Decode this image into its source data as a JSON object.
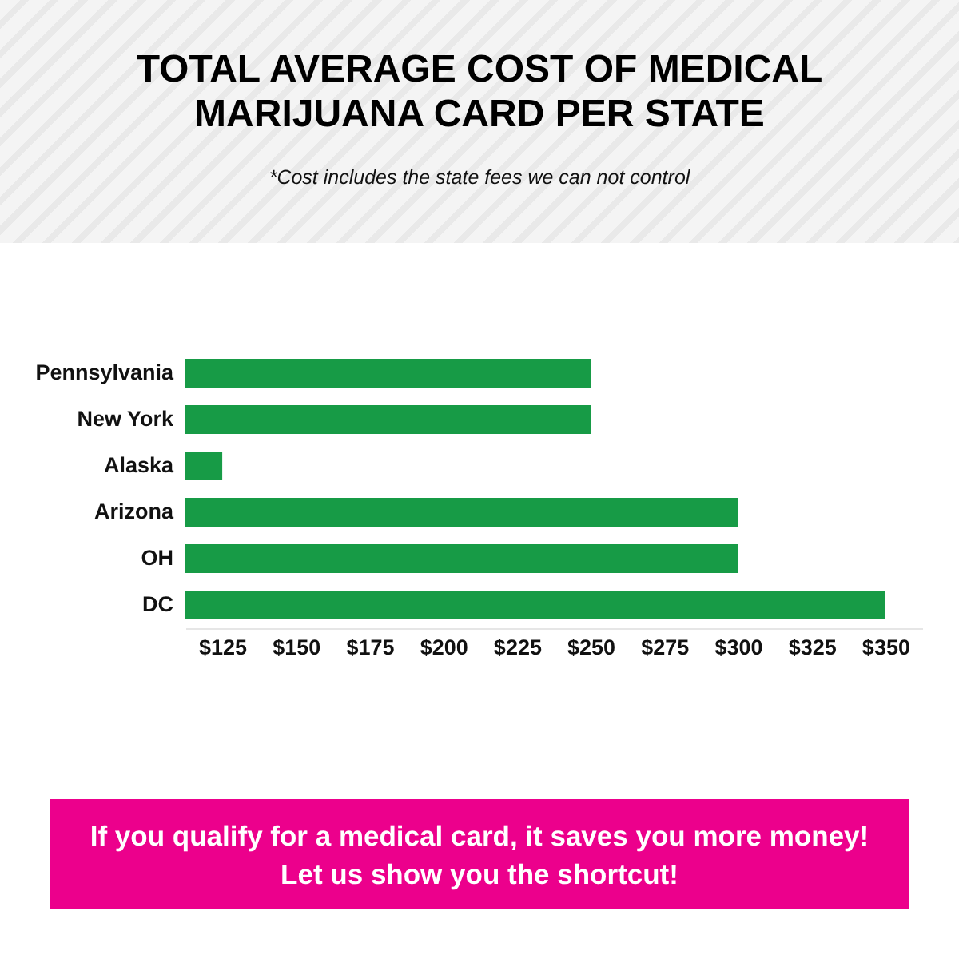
{
  "chart_data": {
    "type": "bar",
    "orientation": "horizontal",
    "title": "TOTAL AVERAGE COST OF MEDICAL MARIJUANA CARD PER STATE",
    "subtitle": "*Cost includes the state fees we can not control",
    "categories": [
      "Pennsylvania",
      "New York",
      "Alaska",
      "Arizona",
      "OH",
      "DC"
    ],
    "values": [
      250,
      250,
      125,
      300,
      300,
      350
    ],
    "color": "#179b46",
    "xlim": [
      112.5,
      362.5
    ],
    "xticks": [
      {
        "value": 125,
        "label": "$125"
      },
      {
        "value": 150,
        "label": "$150"
      },
      {
        "value": 175,
        "label": "$175"
      },
      {
        "value": 200,
        "label": "$200"
      },
      {
        "value": 225,
        "label": "$225"
      },
      {
        "value": 250,
        "label": "$250"
      },
      {
        "value": 275,
        "label": "$275"
      },
      {
        "value": 300,
        "label": "$300"
      },
      {
        "value": 325,
        "label": "$325"
      },
      {
        "value": 350,
        "label": "$350"
      }
    ],
    "grid": false,
    "annotations": [
      "If you qualify for a medical card, it saves you more money! Let us show you the shortcut!"
    ]
  }
}
